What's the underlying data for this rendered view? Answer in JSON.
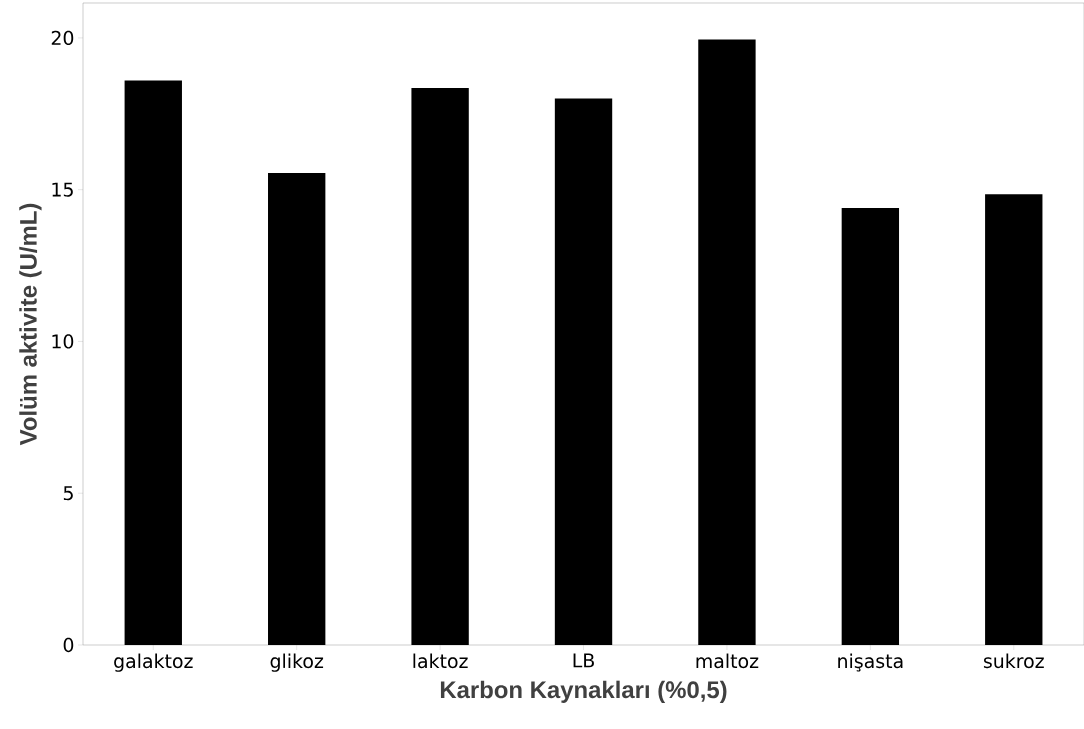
{
  "chart_data": {
    "type": "bar",
    "xlabel": "Karbon Kaynakları (%0,5)",
    "ylabel": "Volüm aktivite (U/mL)",
    "categories": [
      "galaktoz",
      "glikoz",
      "laktoz",
      "LB",
      "maltoz",
      "nişasta",
      "sukroz"
    ],
    "values": [
      18.6,
      15.55,
      18.35,
      18.0,
      19.95,
      14.4,
      14.85
    ],
    "color": "#000000",
    "ylim": [
      0,
      21.15
    ],
    "yticks": [
      0,
      5,
      10,
      15,
      20
    ],
    "grid": false
  }
}
